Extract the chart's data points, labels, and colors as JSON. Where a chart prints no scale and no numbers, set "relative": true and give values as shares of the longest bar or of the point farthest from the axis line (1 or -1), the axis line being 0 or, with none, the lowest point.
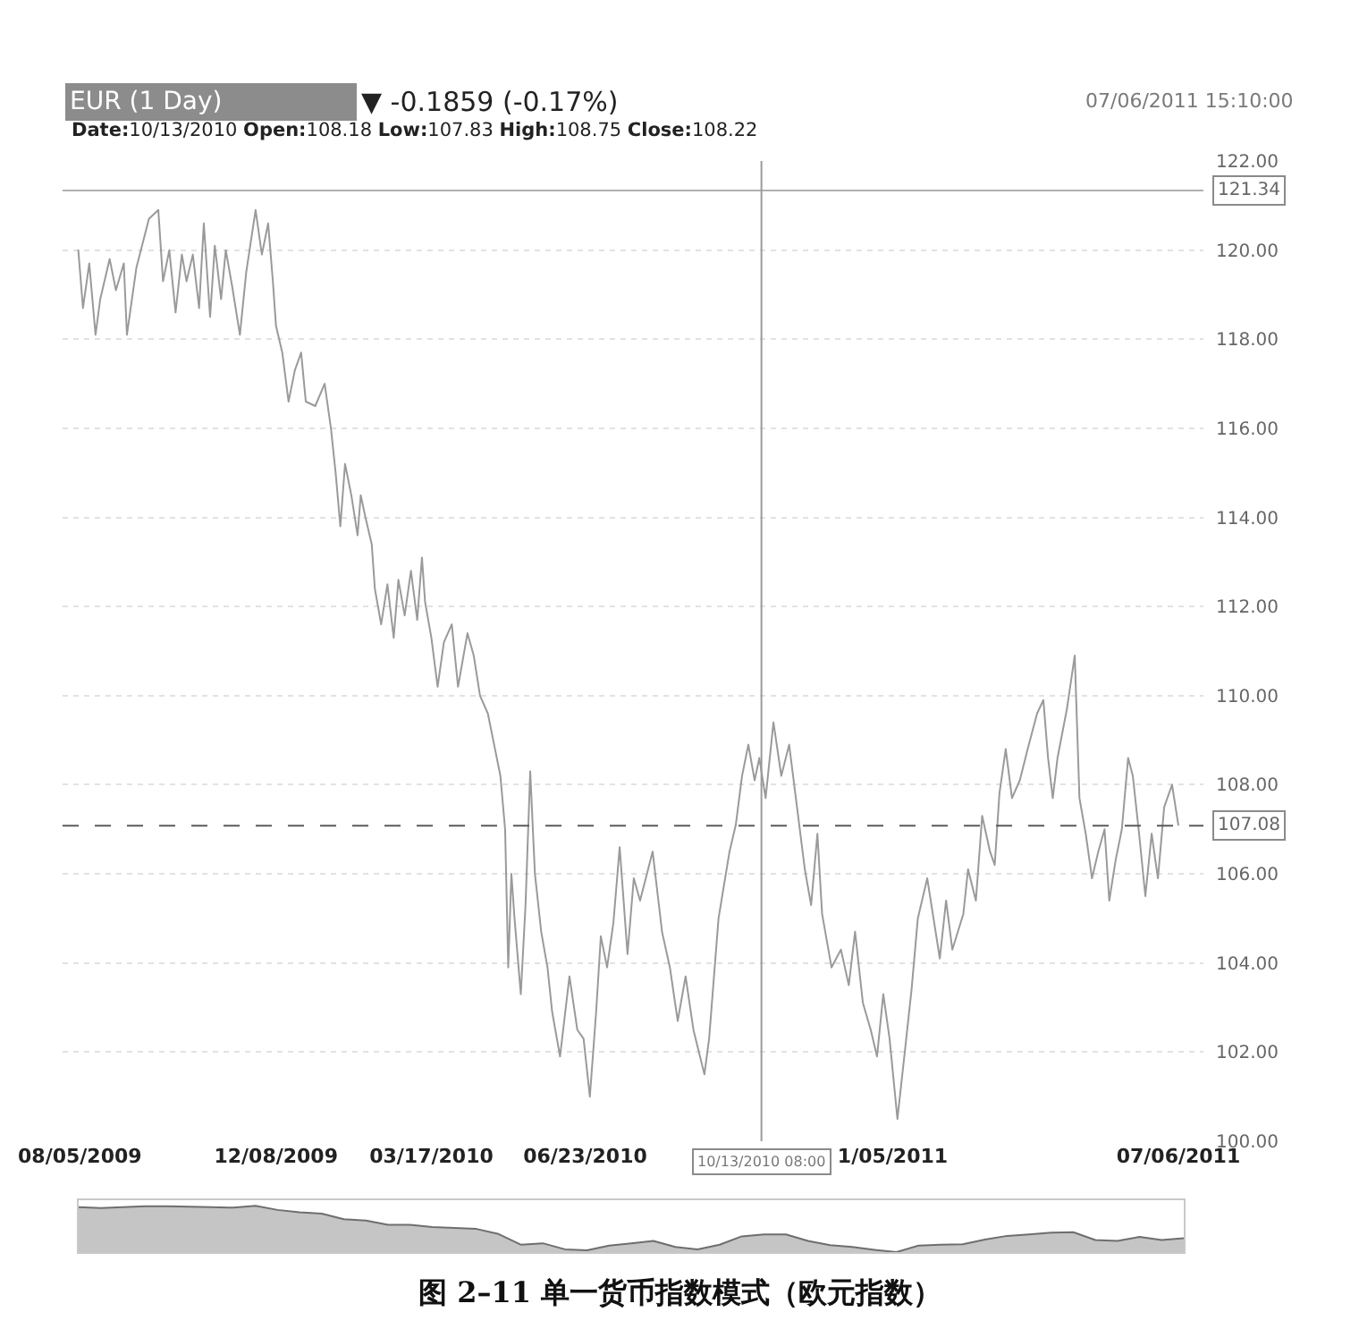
{
  "chart_data": [
    {
      "type": "line",
      "title": "EUR (1 Day)",
      "subtitle": "▼ -0.1859 (-0.17%)",
      "annotations": [
        "07/06/2011 15:10:00",
        "Date:10/13/2010 Open:108.18 Low:107.83 High:108.75 Close:108.22",
        "图 2–11 单一货币指数模式（欧元指数）"
      ],
      "x": [
        "2009-08-04",
        "2009-08-07",
        "2009-08-11",
        "2009-08-15",
        "2009-08-18",
        "2009-08-24",
        "2009-08-28",
        "2009-09-02",
        "2009-09-04",
        "2009-09-10",
        "2009-09-18",
        "2009-09-24",
        "2009-09-27",
        "2009-10-01",
        "2009-10-05",
        "2009-10-09",
        "2009-10-12",
        "2009-10-16",
        "2009-10-20",
        "2009-10-23",
        "2009-10-27",
        "2009-10-30",
        "2009-11-03",
        "2009-11-06",
        "2009-11-10",
        "2009-11-15",
        "2009-11-19",
        "2009-11-25",
        "2009-11-29",
        "2009-12-03",
        "2009-12-06",
        "2009-12-08",
        "2009-12-12",
        "2009-12-16",
        "2009-12-20",
        "2009-12-24",
        "2009-12-27",
        "2010-01-02",
        "2010-01-08",
        "2010-01-12",
        "2010-01-15",
        "2010-01-18",
        "2010-01-21",
        "2010-01-25",
        "2010-01-29",
        "2010-01-31",
        "2010-02-03",
        "2010-02-07",
        "2010-02-09",
        "2010-02-13",
        "2010-02-17",
        "2010-02-21",
        "2010-02-24",
        "2010-02-28",
        "2010-03-04",
        "2010-03-08",
        "2010-03-11",
        "2010-03-13",
        "2010-03-17",
        "2010-03-21",
        "2010-03-25",
        "2010-03-30",
        "2010-04-03",
        "2010-04-09",
        "2010-04-13",
        "2010-04-17",
        "2010-04-22",
        "2010-04-26",
        "2010-04-30",
        "2010-05-03",
        "2010-05-05",
        "2010-05-07",
        "2010-05-09",
        "2010-05-13",
        "2010-05-16",
        "2010-05-19",
        "2010-05-22",
        "2010-05-26",
        "2010-05-30",
        "2010-06-02",
        "2010-06-07",
        "2010-06-13",
        "2010-06-18",
        "2010-06-22",
        "2010-06-26",
        "2010-06-30",
        "2010-07-03",
        "2010-07-07",
        "2010-07-11",
        "2010-07-15",
        "2010-07-20",
        "2010-07-24",
        "2010-07-28",
        "2010-08-05",
        "2010-08-11",
        "2010-08-16",
        "2010-08-21",
        "2010-08-26",
        "2010-08-31",
        "2010-09-07",
        "2010-09-10",
        "2010-09-16",
        "2010-09-23",
        "2010-09-27",
        "2010-10-01",
        "2010-10-05",
        "2010-10-09",
        "2010-10-12",
        "2010-10-16",
        "2010-10-21",
        "2010-10-26",
        "2010-10-31",
        "2010-11-05",
        "2010-11-10",
        "2010-11-14",
        "2010-11-18",
        "2010-11-21",
        "2010-11-27",
        "2010-12-03",
        "2010-12-08",
        "2010-12-12",
        "2010-12-17",
        "2010-12-22",
        "2010-12-26",
        "2010-12-30",
        "2011-01-03",
        "2011-01-08",
        "2011-01-13",
        "2011-01-17",
        "2011-01-21",
        "2011-01-27",
        "2011-01-31",
        "2011-02-04",
        "2011-02-08",
        "2011-02-12",
        "2011-02-19",
        "2011-02-22",
        "2011-02-27",
        "2011-03-03",
        "2011-03-08",
        "2011-03-11",
        "2011-03-14",
        "2011-03-18",
        "2011-03-22",
        "2011-03-27",
        "2011-04-01",
        "2011-04-07",
        "2011-04-11",
        "2011-04-14",
        "2011-04-17",
        "2011-04-20",
        "2011-04-26",
        "2011-05-01",
        "2011-05-04",
        "2011-05-08",
        "2011-05-12",
        "2011-05-16",
        "2011-05-20",
        "2011-05-23",
        "2011-05-27",
        "2011-05-31",
        "2011-06-04",
        "2011-06-07",
        "2011-06-11",
        "2011-06-15",
        "2011-06-19",
        "2011-06-23",
        "2011-06-27",
        "2011-07-02",
        "2011-07-06"
      ],
      "values": [
        120.0,
        118.7,
        119.7,
        118.1,
        118.9,
        119.8,
        119.1,
        119.7,
        118.1,
        119.6,
        120.7,
        120.9,
        119.3,
        120.0,
        118.6,
        119.9,
        119.3,
        119.9,
        118.7,
        120.6,
        118.5,
        120.1,
        118.9,
        120.0,
        119.2,
        118.1,
        119.5,
        120.9,
        119.9,
        120.6,
        119.3,
        118.3,
        117.7,
        116.6,
        117.3,
        117.7,
        116.6,
        116.5,
        117.0,
        116.0,
        115.0,
        113.8,
        115.2,
        114.5,
        113.6,
        114.5,
        114.0,
        113.4,
        112.4,
        111.6,
        112.5,
        111.3,
        112.6,
        111.8,
        112.8,
        111.7,
        113.1,
        112.1,
        111.3,
        110.2,
        111.2,
        111.6,
        110.2,
        111.4,
        110.9,
        110.0,
        109.6,
        108.9,
        108.2,
        107.0,
        103.9,
        106.0,
        105.0,
        103.3,
        105.3,
        108.3,
        106.0,
        104.7,
        103.9,
        102.9,
        101.9,
        103.7,
        102.5,
        102.3,
        101.0,
        102.9,
        104.6,
        103.9,
        104.9,
        106.6,
        104.2,
        105.9,
        105.4,
        106.5,
        104.7,
        103.9,
        102.7,
        103.7,
        102.5,
        101.5,
        102.3,
        105.0,
        106.5,
        107.1,
        108.2,
        108.9,
        108.1,
        108.6,
        107.7,
        109.4,
        108.2,
        108.9,
        107.5,
        106.1,
        105.3,
        106.9,
        105.1,
        103.9,
        104.3,
        103.5,
        104.7,
        103.1,
        102.5,
        101.9,
        103.3,
        102.3,
        100.5,
        102.1,
        103.4,
        105.0,
        105.9,
        105.0,
        104.1,
        105.4,
        104.3,
        105.1,
        106.1,
        105.4,
        107.3,
        106.5,
        106.2,
        107.8,
        108.8,
        107.7,
        108.1,
        108.8,
        109.6,
        109.9,
        108.6,
        107.7,
        108.6,
        109.7,
        110.9,
        107.7,
        106.9,
        105.9,
        106.5,
        107.0,
        105.4,
        106.3,
        107.0,
        108.6,
        108.2,
        106.9,
        105.5,
        106.9,
        105.9,
        107.5,
        108.0,
        107.1
      ],
      "color": "#9a9a9a",
      "xlim": [
        "2009-07-25",
        "2011-07-22"
      ],
      "ylim": [
        100,
        122
      ],
      "xticks": [
        {
          "value": "2009-08-05",
          "label": "08/05/2009"
        },
        {
          "value": "2009-12-08",
          "label": "12/08/2009"
        },
        {
          "value": "2010-03-17",
          "label": "03/17/2010"
        },
        {
          "value": "2010-06-23",
          "label": "06/23/2010"
        },
        {
          "value": "2011-01-05",
          "label": "1/05/2011"
        },
        {
          "value": "2011-07-06",
          "label": "07/06/2011"
        }
      ],
      "yticks": [
        {
          "value": 100,
          "label": "100.00"
        },
        {
          "value": 102,
          "label": "102.00"
        },
        {
          "value": 104,
          "label": "104.00"
        },
        {
          "value": 106,
          "label": "106.00"
        },
        {
          "value": 108,
          "label": "108.00"
        },
        {
          "value": 110,
          "label": "110.00"
        },
        {
          "value": 112,
          "label": "112.00"
        },
        {
          "value": 114,
          "label": "114.00"
        },
        {
          "value": 116,
          "label": "116.00"
        },
        {
          "value": 118,
          "label": "118.00"
        },
        {
          "value": 120,
          "label": "120.00"
        },
        {
          "value": 122,
          "label": "122.00"
        }
      ],
      "grid": "y",
      "line_style": "solid",
      "ref_lines": [
        {
          "axis": "y",
          "value": 121.34,
          "label": "121.34",
          "color": "#b0b0b0",
          "line_style": "solid"
        },
        {
          "axis": "y",
          "value": 107.08,
          "label": "107.08",
          "color": "#5a5a5a",
          "line_style": "dashed"
        },
        {
          "axis": "x",
          "value": "2010-10-13T08:00",
          "label": "10/13/2010 08:00",
          "color": "#9a9a9a",
          "line_style": "solid"
        }
      ]
    },
    {
      "type": "area",
      "relative": true,
      "categories": [
        null,
        null,
        null,
        null,
        null,
        null,
        null,
        null,
        null,
        null,
        null,
        null,
        null,
        null,
        null,
        null,
        null,
        null,
        null,
        null,
        null,
        null,
        null,
        null,
        null,
        null,
        null,
        null,
        null,
        null,
        null,
        null,
        null,
        null,
        null,
        null,
        null,
        null,
        null,
        null,
        null,
        null,
        null,
        null,
        null,
        null,
        null,
        null,
        null,
        null,
        null
      ],
      "values": [
        0.97,
        0.95,
        0.97,
        0.99,
        0.99,
        0.98,
        0.97,
        0.96,
        1.0,
        0.91,
        0.86,
        0.83,
        0.71,
        0.68,
        0.59,
        0.59,
        0.54,
        0.52,
        0.5,
        0.39,
        0.16,
        0.19,
        0.06,
        0.04,
        0.14,
        0.19,
        0.24,
        0.11,
        0.06,
        0.16,
        0.34,
        0.38,
        0.38,
        0.24,
        0.15,
        0.11,
        0.05,
        0.0,
        0.14,
        0.16,
        0.17,
        0.27,
        0.35,
        0.38,
        0.42,
        0.43,
        0.26,
        0.24,
        0.33,
        0.26,
        0.3
      ],
      "color": "#6e6e6e"
    }
  ]
}
